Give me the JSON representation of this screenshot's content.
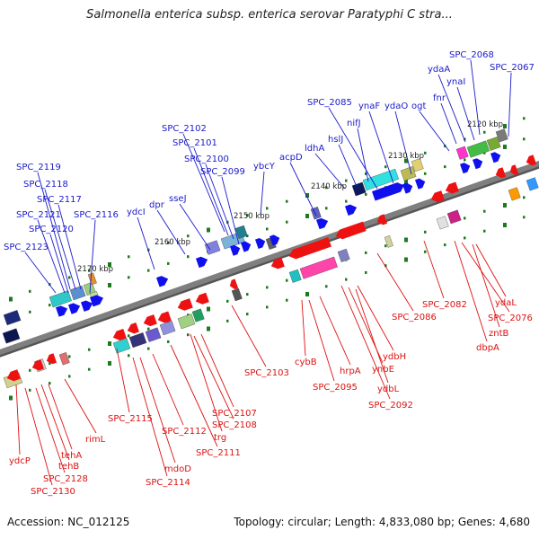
{
  "title": "Salmonella enterica subsp. enterica serovar Paratyphi C stra...",
  "footer": {
    "accession": "Accession: NC_012125",
    "summary": "Topology: circular; Length: 4,833,080 bp; Genes: 4,680"
  },
  "colors": {
    "plus_strand_label": "#1a1acc",
    "minus_strand_label": "#dd1111",
    "plus_arrow": "#1010ee",
    "minus_arrow": "#ee1111",
    "tick": "#1e7a1e",
    "backbone": "#7f7f7f"
  },
  "scale_ticks": [
    "2120 kbp",
    "2130 kbp",
    "2140 kbp",
    "2150 kbp",
    "2160 kbp",
    "2170 kbp"
  ],
  "plus_strand_genes": [
    "SPC_2068",
    "SPC_2067",
    "ydaA",
    "ynaI",
    "fnr",
    "ogt",
    "ydaO",
    "nifJ",
    "ynaF",
    "hslJ",
    "SPC_2085",
    "ldhA",
    "acpD",
    "ybcY",
    "SPC_2102",
    "SPC_2101",
    "SPC_2100",
    "SPC_2099",
    "sseJ",
    "dpr",
    "ydcI",
    "SPC_2119",
    "SPC_2118",
    "SPC_2117",
    "SPC_2121",
    "SPC_2120",
    "SPC_2116",
    "SPC_2123"
  ],
  "minus_strand_genes": [
    "ydaL",
    "SPC_2076",
    "zntB",
    "dbpA",
    "SPC_2082",
    "SPC_2086",
    "ydbH",
    "ynbE",
    "ydbL",
    "SPC_2092",
    "hrpA",
    "cybB",
    "SPC_2095",
    "SPC_2103",
    "SPC_2107",
    "SPC_2108",
    "trg",
    "SPC_2111",
    "SPC_2112",
    "mdoD",
    "SPC_2114",
    "SPC_2115",
    "rimL",
    "tehA",
    "tehB",
    "SPC_2128",
    "ydcP",
    "SPC_2130"
  ]
}
